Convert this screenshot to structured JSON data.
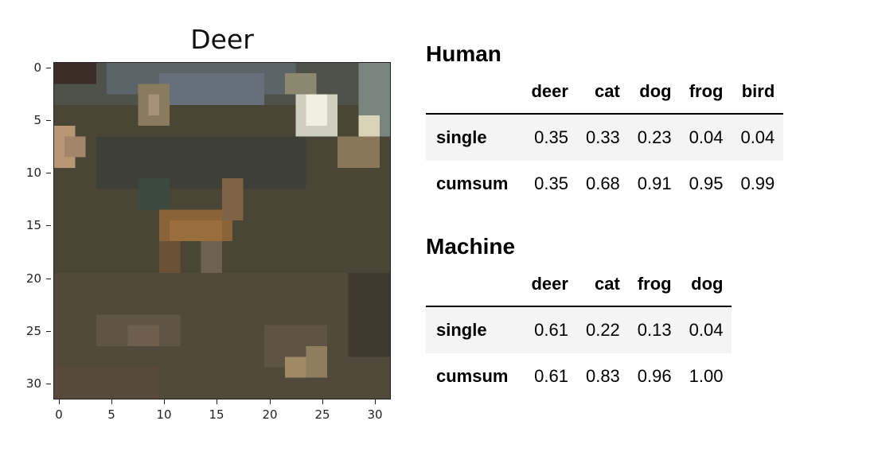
{
  "image_panel": {
    "title": "Deer",
    "y_ticks": [
      "0",
      "5",
      "10",
      "15",
      "20",
      "25",
      "30"
    ],
    "x_ticks": [
      "0",
      "5",
      "10",
      "15",
      "20",
      "25",
      "30"
    ]
  },
  "human": {
    "title": "Human",
    "columns": [
      "deer",
      "cat",
      "dog",
      "frog",
      "bird"
    ],
    "rows": [
      {
        "label": "single",
        "values": [
          "0.35",
          "0.33",
          "0.23",
          "0.04",
          "0.04"
        ]
      },
      {
        "label": "cumsum",
        "values": [
          "0.35",
          "0.68",
          "0.91",
          "0.95",
          "0.99"
        ]
      }
    ]
  },
  "machine": {
    "title": "Machine",
    "columns": [
      "deer",
      "cat",
      "frog",
      "dog"
    ],
    "rows": [
      {
        "label": "single",
        "values": [
          "0.61",
          "0.22",
          "0.13",
          "0.04"
        ]
      },
      {
        "label": "cumsum",
        "values": [
          "0.61",
          "0.83",
          "0.96",
          "1.00"
        ]
      }
    ]
  }
}
